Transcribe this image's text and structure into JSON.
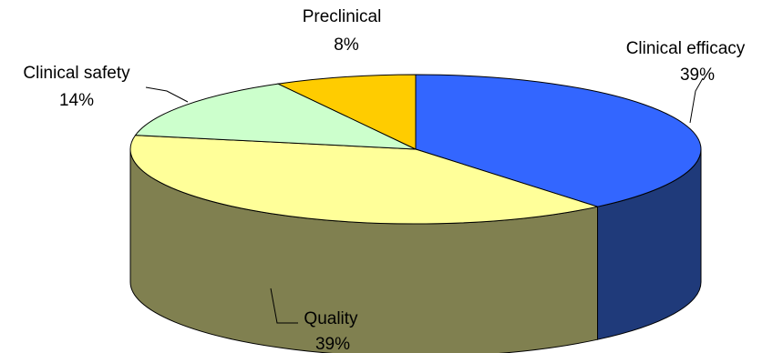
{
  "chart_data": {
    "type": "pie",
    "style": "3d",
    "title": "",
    "slices": [
      {
        "name": "Clinical efficacy",
        "value": 39,
        "value_label": "39%",
        "color": "#3366FF",
        "side_color": "#1F3A7A"
      },
      {
        "name": "Quality",
        "value": 39,
        "value_label": "39%",
        "color": "#FFFF99",
        "side_color": "#808050"
      },
      {
        "name": "Clinical safety",
        "value": 14,
        "value_label": "14%",
        "color": "#CCFFCC",
        "side_color": "#7A8A6A"
      },
      {
        "name": "Preclinical",
        "value": 8,
        "value_label": "8%",
        "color": "#FFCC00",
        "side_color": "#8A7000"
      }
    ],
    "start_angle_deg": 90,
    "direction": "clockwise",
    "legend": "none",
    "labels": "outside with leader lines"
  }
}
